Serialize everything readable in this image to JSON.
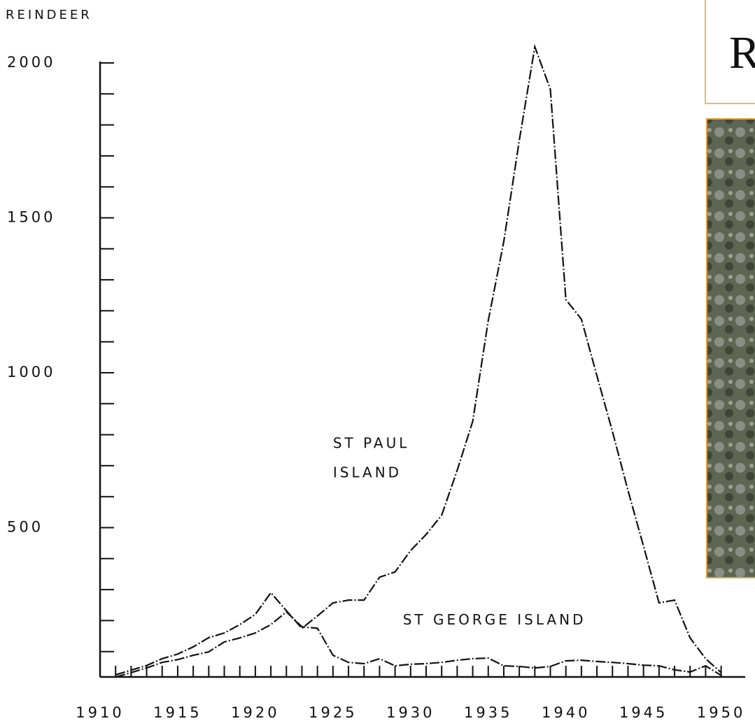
{
  "chart_data": {
    "type": "line",
    "y_label": "REINDEER",
    "x": [
      1911,
      1912,
      1913,
      1914,
      1915,
      1916,
      1917,
      1918,
      1919,
      1920,
      1921,
      1922,
      1923,
      1924,
      1925,
      1926,
      1927,
      1928,
      1929,
      1930,
      1931,
      1932,
      1933,
      1934,
      1935,
      1936,
      1937,
      1938,
      1939,
      1940,
      1941,
      1942,
      1943,
      1944,
      1945,
      1946,
      1947,
      1948,
      1949,
      1950
    ],
    "series": [
      {
        "name": "ST PAUL ISLAND",
        "color": "#111111",
        "values": [
          25,
          40,
          55,
          77,
          92,
          115,
          145,
          160,
          187,
          220,
          290,
          232,
          175,
          215,
          257,
          266,
          266,
          340,
          357,
          426,
          478,
          540,
          685,
          843,
          1168,
          1423,
          1750,
          2052,
          1915,
          1236,
          1173,
          990,
          810,
          620,
          440,
          257,
          266,
          144,
          77,
          32
        ]
      },
      {
        "name": "ST GEORGE ISLAND",
        "color": "#111111",
        "values": [
          18,
          32,
          47,
          65,
          74,
          88,
          99,
          131,
          144,
          160,
          187,
          228,
          180,
          175,
          88,
          65,
          61,
          77,
          54,
          59,
          61,
          65,
          72,
          77,
          79,
          54,
          52,
          47,
          52,
          70,
          72,
          68,
          65,
          61,
          56,
          54,
          41,
          34,
          54,
          23
        ]
      }
    ],
    "annotations": [
      {
        "text": "ST PAUL",
        "x": 1925,
        "y": 770
      },
      {
        "text": "ISLAND",
        "x": 1925,
        "y": 675
      },
      {
        "text": "ST GEORGE ISLAND",
        "x": 1929.5,
        "y": 200
      }
    ],
    "xlim": [
      1910,
      1952
    ],
    "ylim": [
      0,
      2000
    ],
    "xticks": [
      1910,
      1915,
      1920,
      1925,
      1930,
      1935,
      1940,
      1945,
      1950
    ],
    "yticks": [
      500,
      1000,
      1500,
      2000
    ],
    "xminorticks": [
      1911,
      1912,
      1913,
      1914,
      1915,
      1916,
      1917,
      1918,
      1919,
      1920,
      1921,
      1922,
      1923,
      1924,
      1925,
      1926,
      1927,
      1928,
      1929,
      1930,
      1931,
      1932,
      1933,
      1934,
      1935,
      1936,
      1937,
      1938,
      1939,
      1940,
      1941,
      1942,
      1943,
      1944,
      1945,
      1946,
      1947,
      1948,
      1949,
      1950
    ],
    "yminorticks": [
      100,
      200,
      300,
      400,
      500,
      600,
      700,
      800,
      900,
      1000,
      1100,
      1200,
      1300,
      1400,
      1500,
      1600,
      1700,
      1800,
      1900,
      2000
    ]
  },
  "overlay": {
    "text": "R"
  }
}
